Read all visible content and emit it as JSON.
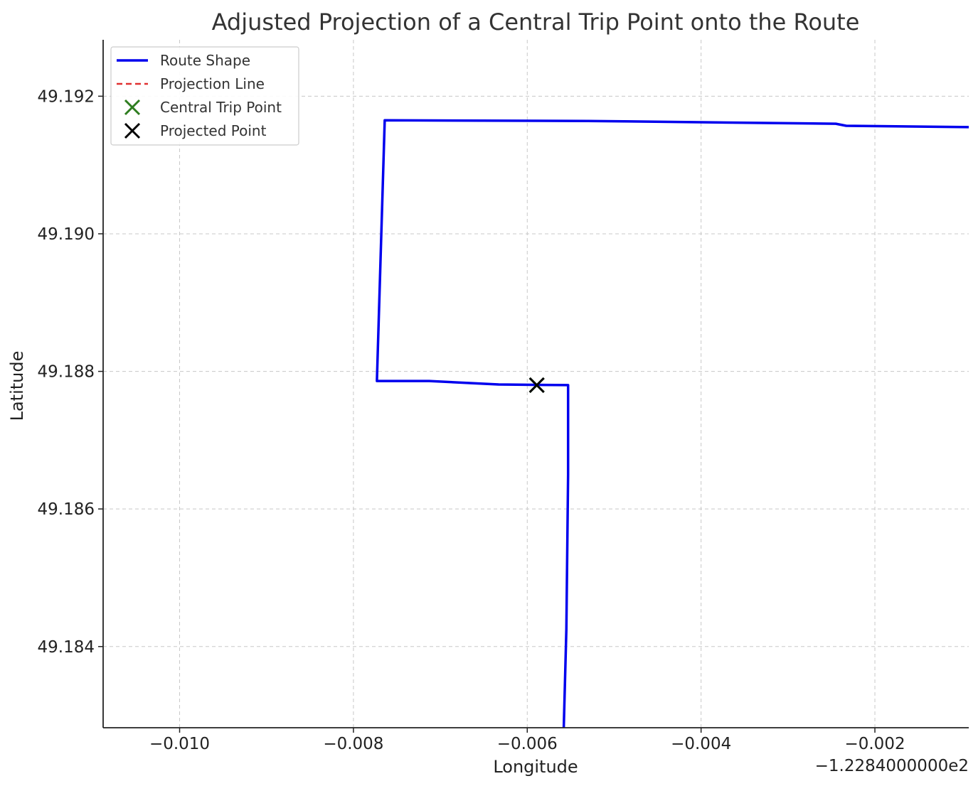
{
  "chart_data": {
    "type": "line",
    "title": "Adjusted Projection of a Central Trip Point onto the Route",
    "xlabel": "Longitude",
    "ylabel": "Latitude",
    "x_offset_label": "−1.2284000000e2",
    "xlim": [
      -0.01088,
      -0.00092
    ],
    "ylim": [
      49.18282,
      49.19282
    ],
    "x_ticks": [
      -0.01,
      -0.008,
      -0.006,
      -0.004,
      -0.002
    ],
    "x_tick_labels": [
      "−0.010",
      "−0.008",
      "−0.006",
      "−0.004",
      "−0.002"
    ],
    "y_ticks": [
      49.184,
      49.186,
      49.188,
      49.19,
      49.192
    ],
    "y_tick_labels": [
      "49.184",
      "49.186",
      "49.188",
      "49.190",
      "49.192"
    ],
    "grid": true,
    "legend_position": "top-left",
    "series": [
      {
        "name": "Route Shape",
        "kind": "line",
        "color": "#0000ee",
        "x": [
          -0.00558,
          -0.00555,
          -0.00553,
          -0.00553,
          -0.00633,
          -0.00713,
          -0.00773,
          -0.00764,
          -0.0053,
          -0.00245,
          -0.00233,
          -0.00092
        ],
        "y": [
          49.18282,
          49.18425,
          49.1865,
          49.1878,
          49.18781,
          49.18786,
          49.18786,
          49.19165,
          49.19164,
          49.1916,
          49.19157,
          49.19155
        ]
      },
      {
        "name": "Projection Line",
        "kind": "dashed-line",
        "color": "#e03030",
        "x": [
          -0.00589,
          -0.00589
        ],
        "y": [
          49.1878,
          49.1878
        ]
      },
      {
        "name": "Central Trip Point",
        "kind": "marker-x",
        "color": "#2e7d1f",
        "x": [
          -0.00589
        ],
        "y": [
          49.1878
        ]
      },
      {
        "name": "Projected Point",
        "kind": "marker-x",
        "color": "#000000",
        "x": [
          -0.00589
        ],
        "y": [
          49.1878
        ]
      }
    ]
  }
}
